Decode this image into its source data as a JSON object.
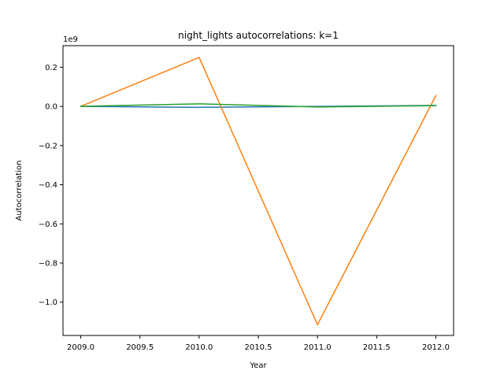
{
  "chart_data": {
    "type": "line",
    "title": "night_lights autocorrelations: k=1",
    "xlabel": "Year",
    "ylabel": "Autocorrelation",
    "y_offset_label": "1e9",
    "x": [
      2009.0,
      2010.0,
      2011.0,
      2012.0
    ],
    "xlim": [
      2008.85,
      2012.15
    ],
    "ylim": [
      -1.17,
      0.31
    ],
    "x_ticks": [
      2009.0,
      2009.5,
      2010.0,
      2010.5,
      2011.0,
      2011.5,
      2012.0
    ],
    "x_tick_labels": [
      "2009.0",
      "2009.5",
      "2010.0",
      "2010.5",
      "2011.0",
      "2011.5",
      "2012.0"
    ],
    "y_ticks": [
      0.2,
      0.0,
      -0.2,
      -0.4,
      -0.6,
      -0.8,
      -1.0
    ],
    "y_tick_labels": [
      "0.2",
      "0.0",
      "−0.2",
      "−0.4",
      "−0.6",
      "−0.8",
      "−1.0"
    ],
    "grid": false,
    "series": [
      {
        "color": "#1f77b4",
        "values": [
          0.0,
          -0.005,
          0.0,
          0.005
        ]
      },
      {
        "color": "#ff7f0e",
        "values": [
          0.0,
          0.25,
          -1.115,
          0.055
        ]
      },
      {
        "color": "#2ca02c",
        "values": [
          0.0,
          0.013,
          -0.003,
          0.004
        ]
      }
    ]
  }
}
